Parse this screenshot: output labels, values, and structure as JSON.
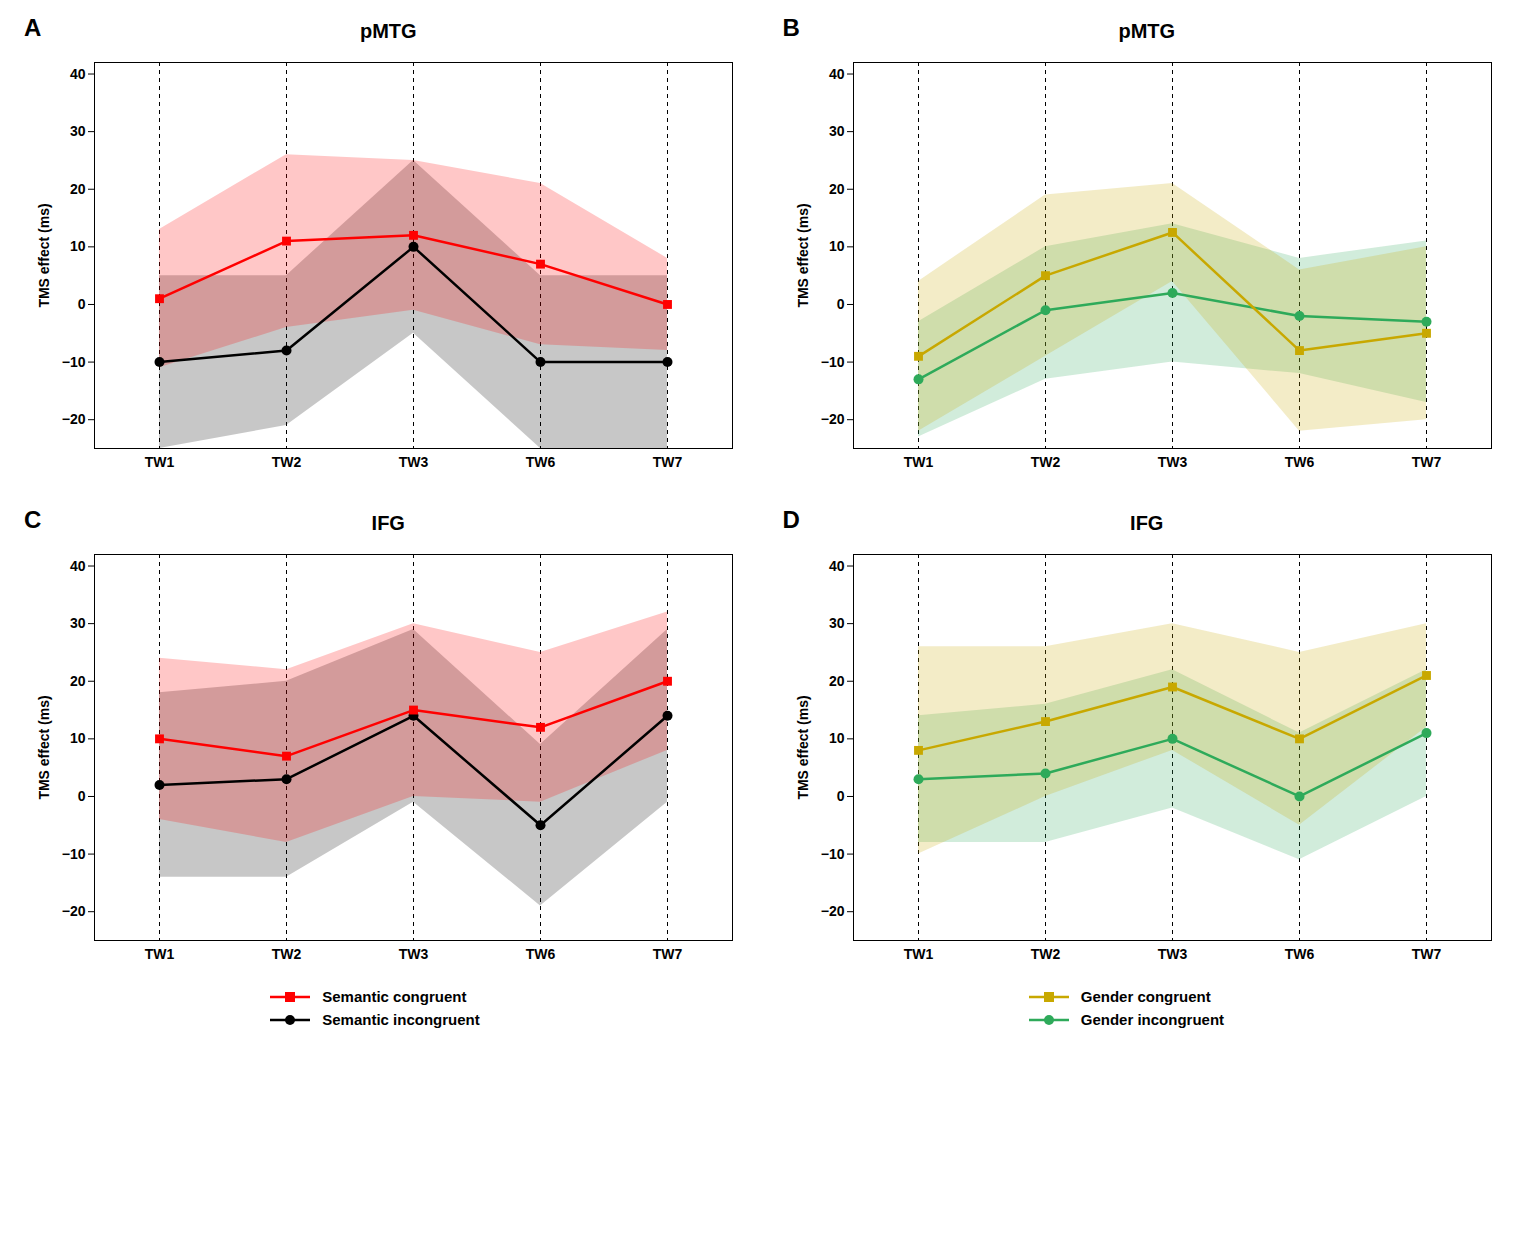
{
  "chart_data": [
    {
      "type": "line",
      "title": "pMTG",
      "annotations": [
        "A"
      ],
      "categories": [
        "TW1",
        "TW2",
        "TW3",
        "TW6",
        "TW7"
      ],
      "ylabel": "TMS effect (ms)",
      "ylim": [
        -25,
        42
      ],
      "yticks": [
        -20,
        -10,
        0,
        10,
        20,
        30,
        40
      ],
      "grid": "x",
      "series": [
        {
          "color": "#FF0000",
          "marker": "square",
          "values": [
            1,
            11,
            12,
            7,
            0
          ],
          "upper": [
            13,
            26,
            25,
            21,
            8
          ],
          "lower": [
            -11,
            -4,
            -1,
            -7,
            -8
          ]
        },
        {
          "color": "#000000",
          "marker": "circle",
          "values": [
            -10,
            -8,
            10,
            -10,
            -10
          ],
          "upper": [
            5,
            5,
            25,
            5,
            5
          ],
          "lower": [
            -25,
            -21,
            -5,
            -25,
            -25
          ]
        }
      ]
    },
    {
      "type": "line",
      "title": "pMTG",
      "annotations": [
        "B"
      ],
      "categories": [
        "TW1",
        "TW2",
        "TW3",
        "TW6",
        "TW7"
      ],
      "ylabel": "TMS effect (ms)",
      "ylim": [
        -25,
        42
      ],
      "yticks": [
        -20,
        -10,
        0,
        10,
        20,
        30,
        40
      ],
      "grid": "x",
      "series": [
        {
          "color": "#C8A800",
          "marker": "square",
          "values": [
            -9,
            5,
            12.5,
            -8,
            -5
          ],
          "upper": [
            4,
            19,
            21,
            6,
            10
          ],
          "lower": [
            -22,
            -9,
            4,
            -22,
            -20
          ]
        },
        {
          "color": "#2EAA5A",
          "marker": "circle",
          "values": [
            -13,
            -1,
            2,
            -2,
            -3
          ],
          "upper": [
            -3,
            10,
            14,
            8,
            11
          ],
          "lower": [
            -23,
            -13,
            -10,
            -12,
            -17
          ]
        }
      ]
    },
    {
      "type": "line",
      "title": "IFG",
      "annotations": [
        "C"
      ],
      "categories": [
        "TW1",
        "TW2",
        "TW3",
        "TW6",
        "TW7"
      ],
      "ylabel": "TMS effect (ms)",
      "ylim": [
        -25,
        42
      ],
      "yticks": [
        -20,
        -10,
        0,
        10,
        20,
        30,
        40
      ],
      "grid": "x",
      "legend": "bottom",
      "series": [
        {
          "name": "Semantic congruent",
          "color": "#FF0000",
          "marker": "square",
          "values": [
            10,
            7,
            15,
            12,
            20
          ],
          "upper": [
            24,
            22,
            30,
            25,
            32
          ],
          "lower": [
            -4,
            -8,
            0,
            -1,
            8
          ]
        },
        {
          "name": "Semantic incongruent",
          "color": "#000000",
          "marker": "circle",
          "values": [
            2,
            3,
            14,
            -5,
            14
          ],
          "upper": [
            18,
            20,
            29,
            9,
            29
          ],
          "lower": [
            -14,
            -14,
            -1,
            -19,
            -1
          ]
        }
      ]
    },
    {
      "type": "line",
      "title": "IFG",
      "annotations": [
        "D"
      ],
      "categories": [
        "TW1",
        "TW2",
        "TW3",
        "TW6",
        "TW7"
      ],
      "ylabel": "TMS effect (ms)",
      "ylim": [
        -25,
        42
      ],
      "yticks": [
        -20,
        -10,
        0,
        10,
        20,
        30,
        40
      ],
      "grid": "x",
      "legend": "bottom",
      "series": [
        {
          "name": "Gender congruent",
          "color": "#C8A800",
          "marker": "square",
          "values": [
            8,
            13,
            19,
            10,
            21
          ],
          "upper": [
            26,
            26,
            30,
            25,
            30
          ],
          "lower": [
            -10,
            0,
            8,
            -5,
            12
          ]
        },
        {
          "name": "Gender incongruent",
          "color": "#2EAA5A",
          "marker": "circle",
          "values": [
            3,
            4,
            10,
            0,
            11
          ],
          "upper": [
            14,
            16,
            22,
            11,
            22
          ],
          "lower": [
            -8,
            -8,
            -2,
            -11,
            0
          ]
        }
      ]
    }
  ]
}
